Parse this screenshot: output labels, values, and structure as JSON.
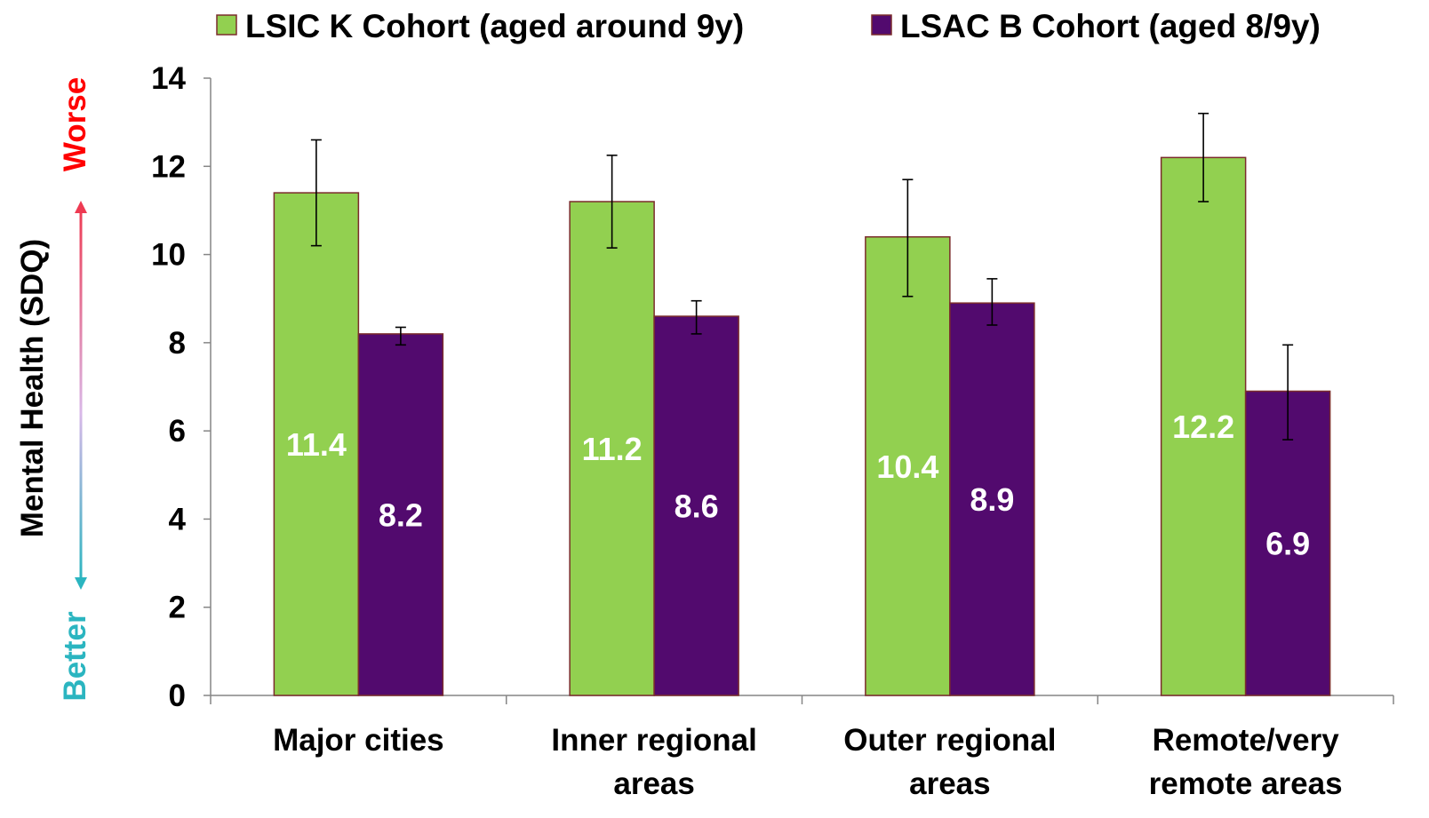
{
  "chart_data": {
    "type": "bar",
    "categories": [
      [
        "Major cities"
      ],
      [
        "Inner regional",
        "areas"
      ],
      [
        "Outer regional",
        "areas"
      ],
      [
        "Remote/very",
        "remote areas"
      ]
    ],
    "series": [
      {
        "name": "LSIC K Cohort (aged around 9y)",
        "color": "#92d050",
        "values": [
          11.4,
          11.2,
          10.4,
          12.2
        ],
        "labels": [
          "11.4",
          "11.2",
          "10.4",
          "12.2"
        ],
        "error_low": [
          10.2,
          10.15,
          9.05,
          11.2
        ],
        "error_high": [
          12.6,
          12.25,
          11.7,
          13.2
        ]
      },
      {
        "name": "LSAC B Cohort (aged 8/9y)",
        "color": "#520a6e",
        "values": [
          8.2,
          8.6,
          8.9,
          6.9
        ],
        "labels": [
          "8.2",
          "8.6",
          "8.9",
          "6.9"
        ],
        "error_low": [
          7.95,
          8.2,
          8.4,
          5.8
        ],
        "error_high": [
          8.35,
          8.95,
          9.45,
          7.95
        ]
      }
    ],
    "ylabel": "Mental Health (SDQ)",
    "ylabel_low": "Better",
    "ylabel_high": "Worse",
    "ylim": [
      0,
      14
    ],
    "yticks": [
      "0",
      "2",
      "4",
      "6",
      "8",
      "10",
      "12",
      "14"
    ],
    "legend_position": "top",
    "grid": false,
    "bar_outline_color": "#7b2c2c",
    "better_color": "#2bb5c0",
    "worse_color": "#ff0000"
  }
}
